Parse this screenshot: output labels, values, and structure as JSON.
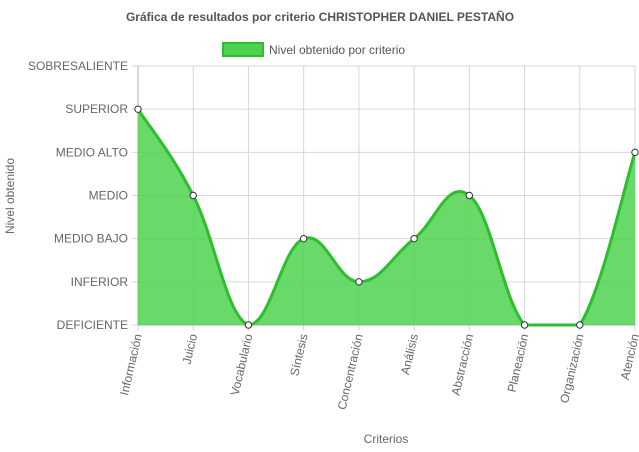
{
  "chart_data": {
    "type": "area",
    "title": "Gráfica de resultados por criterio CHRISTOPHER DANIEL PESTAÑO",
    "xlabel": "Criterios",
    "ylabel": "Nivel obtenido",
    "categories": [
      "Información",
      "Juicio",
      "Vocabulario",
      "Síntesis",
      "Concentración",
      "Análisis",
      "Abstracción",
      "Planeación",
      "Organización",
      "Atención"
    ],
    "y_levels": [
      "DEFICIENTE",
      "INFERIOR",
      "MEDIO BAJO",
      "MEDIO",
      "MEDIO ALTO",
      "SUPERIOR",
      "SOBRESALIENTE"
    ],
    "ylim": [
      0,
      6
    ],
    "series": [
      {
        "name": "Nivel obtenido por criterio",
        "values": [
          5,
          3,
          0,
          2,
          1,
          2,
          3,
          0,
          0,
          4
        ]
      }
    ],
    "legend_position": "top",
    "grid": true,
    "colors": {
      "fill": "#4fd24f",
      "line": "#2cbf2c",
      "point_fill": "#ffffff",
      "point_stroke": "#333333"
    }
  }
}
